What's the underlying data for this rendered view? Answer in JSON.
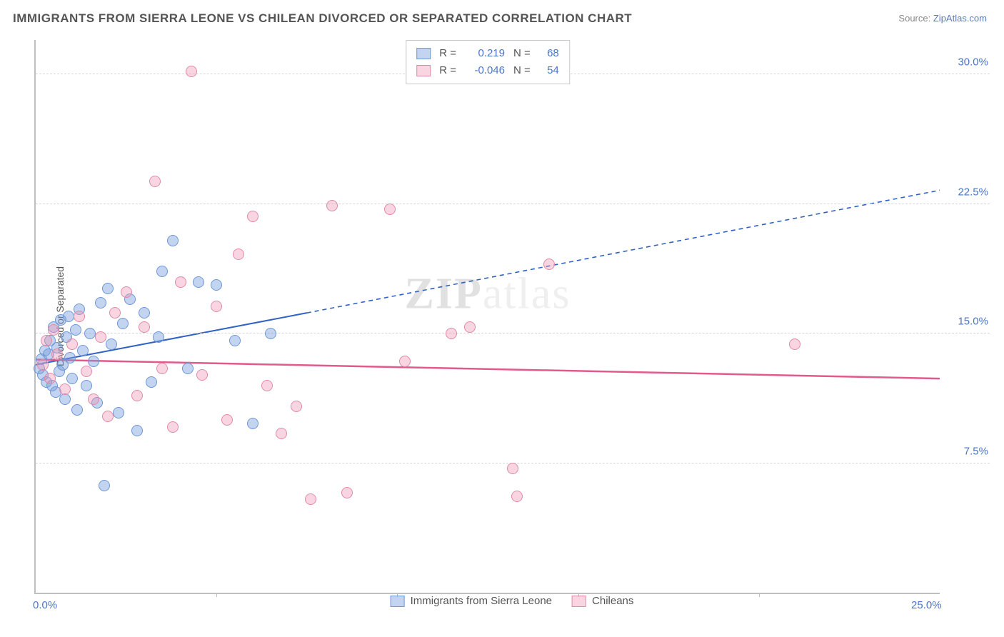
{
  "title": "IMMIGRANTS FROM SIERRA LEONE VS CHILEAN DIVORCED OR SEPARATED CORRELATION CHART",
  "source_label": "Source:",
  "source_name": "ZipAtlas.com",
  "watermark": "ZIPatlas",
  "chart": {
    "type": "scatter",
    "x_axis": {
      "min": 0,
      "max": 25,
      "ticks": [
        0,
        25
      ],
      "tick_labels": [
        "0.0%",
        "25.0%"
      ]
    },
    "y_axis": {
      "min": 0,
      "max": 32,
      "ticks": [
        7.5,
        15.0,
        22.5,
        30.0
      ],
      "tick_labels": [
        "7.5%",
        "15.0%",
        "22.5%",
        "30.0%"
      ],
      "label": "Divorced or Separated"
    },
    "grid_color": "#d6d6d6",
    "axis_color": "#bfbfbf",
    "background": "#ffffff",
    "series": [
      {
        "name": "Immigrants from Sierra Leone",
        "fill": "rgba(120,160,220,0.45)",
        "stroke": "#6f97d4",
        "r_value": "0.219",
        "n_value": "68",
        "trend": {
          "solid_from": [
            0,
            13.2
          ],
          "solid_to": [
            7.5,
            16.2
          ],
          "dash_to": [
            25,
            23.3
          ],
          "color": "#2f62c4",
          "width": 2
        },
        "points": [
          [
            0.1,
            13.0
          ],
          [
            0.15,
            13.5
          ],
          [
            0.2,
            12.6
          ],
          [
            0.25,
            14.0
          ],
          [
            0.3,
            12.2
          ],
          [
            0.35,
            13.8
          ],
          [
            0.4,
            14.6
          ],
          [
            0.45,
            12.0
          ],
          [
            0.5,
            15.4
          ],
          [
            0.55,
            11.6
          ],
          [
            0.6,
            14.2
          ],
          [
            0.65,
            12.8
          ],
          [
            0.7,
            15.8
          ],
          [
            0.75,
            13.2
          ],
          [
            0.8,
            11.2
          ],
          [
            0.85,
            14.8
          ],
          [
            0.9,
            16.0
          ],
          [
            0.95,
            13.6
          ],
          [
            1.0,
            12.4
          ],
          [
            1.1,
            15.2
          ],
          [
            1.15,
            10.6
          ],
          [
            1.2,
            16.4
          ],
          [
            1.3,
            14.0
          ],
          [
            1.4,
            12.0
          ],
          [
            1.5,
            15.0
          ],
          [
            1.6,
            13.4
          ],
          [
            1.7,
            11.0
          ],
          [
            1.8,
            16.8
          ],
          [
            1.9,
            6.2
          ],
          [
            2.0,
            17.6
          ],
          [
            2.1,
            14.4
          ],
          [
            2.3,
            10.4
          ],
          [
            2.4,
            15.6
          ],
          [
            2.6,
            17.0
          ],
          [
            2.8,
            9.4
          ],
          [
            3.0,
            16.2
          ],
          [
            3.2,
            12.2
          ],
          [
            3.4,
            14.8
          ],
          [
            3.5,
            18.6
          ],
          [
            3.8,
            20.4
          ],
          [
            4.2,
            13.0
          ],
          [
            4.5,
            18.0
          ],
          [
            5.0,
            17.8
          ],
          [
            5.5,
            14.6
          ],
          [
            6.0,
            9.8
          ],
          [
            6.5,
            15.0
          ]
        ]
      },
      {
        "name": "Chileans",
        "fill": "rgba(240,150,180,0.40)",
        "stroke": "#e08aaa",
        "r_value": "-0.046",
        "n_value": "54",
        "trend": {
          "solid_from": [
            0,
            13.5
          ],
          "solid_to": [
            25,
            12.4
          ],
          "color": "#e05a8c",
          "width": 2.5
        },
        "points": [
          [
            0.2,
            13.2
          ],
          [
            0.3,
            14.6
          ],
          [
            0.4,
            12.4
          ],
          [
            0.5,
            15.2
          ],
          [
            0.6,
            13.8
          ],
          [
            0.8,
            11.8
          ],
          [
            1.0,
            14.4
          ],
          [
            1.2,
            16.0
          ],
          [
            1.4,
            12.8
          ],
          [
            1.6,
            11.2
          ],
          [
            1.8,
            14.8
          ],
          [
            2.0,
            10.2
          ],
          [
            2.2,
            16.2
          ],
          [
            2.5,
            17.4
          ],
          [
            2.8,
            11.4
          ],
          [
            3.0,
            15.4
          ],
          [
            3.3,
            23.8
          ],
          [
            3.5,
            13.0
          ],
          [
            3.8,
            9.6
          ],
          [
            4.0,
            18.0
          ],
          [
            4.3,
            30.2
          ],
          [
            4.6,
            12.6
          ],
          [
            5.0,
            16.6
          ],
          [
            5.3,
            10.0
          ],
          [
            5.6,
            19.6
          ],
          [
            6.0,
            21.8
          ],
          [
            6.4,
            12.0
          ],
          [
            6.8,
            9.2
          ],
          [
            7.2,
            10.8
          ],
          [
            7.6,
            5.4
          ],
          [
            8.2,
            22.4
          ],
          [
            8.6,
            5.8
          ],
          [
            9.8,
            22.2
          ],
          [
            10.2,
            13.4
          ],
          [
            11.5,
            15.0
          ],
          [
            12.0,
            15.4
          ],
          [
            13.2,
            7.2
          ],
          [
            13.3,
            5.6
          ],
          [
            14.2,
            19.0
          ],
          [
            21.0,
            14.4
          ]
        ]
      }
    ],
    "legend_bottom": [
      {
        "label": "Immigrants from Sierra Leone",
        "fill": "rgba(120,160,220,0.45)",
        "stroke": "#6f97d4"
      },
      {
        "label": "Chileans",
        "fill": "rgba(240,150,180,0.40)",
        "stroke": "#e08aaa"
      }
    ],
    "legend_top_labels": {
      "r": "R =",
      "n": "N ="
    }
  }
}
